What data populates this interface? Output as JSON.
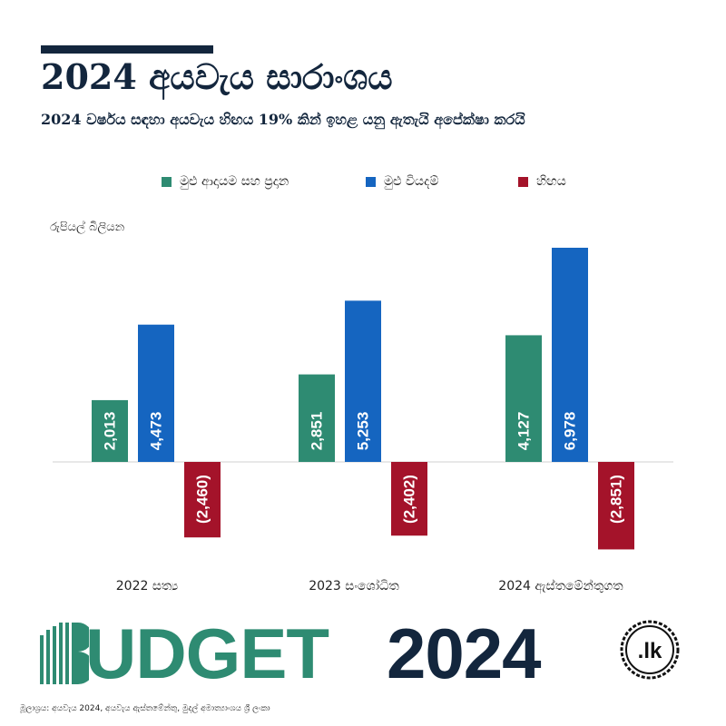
{
  "header": {
    "title": "2024 අයවැය සාරාංශය",
    "subtitle": "2024 වර්ෂය සඳහා අයවැය හිඟය 19% කින් ඉහළ යනු ඇතැයි අපේක්ෂා කරයි"
  },
  "legend": [
    {
      "label": "මුළු ආදායම සහ ප්‍රදාන",
      "color": "#2e8b72"
    },
    {
      "label": "මුළු වියදම්",
      "color": "#1565c0"
    },
    {
      "label": "හිඟය",
      "color": "#a4132a"
    }
  ],
  "chart_data": {
    "type": "bar",
    "ylabel": "රුපියල් බිලියන",
    "categories": [
      "2022 සත්‍ය",
      "2023 සංශෝධිත",
      "2024 ඇස්තමේන්තුගත"
    ],
    "series": [
      {
        "name": "මුළු ආදායම සහ ප්‍රදාන",
        "values": [
          2013,
          2851,
          4127
        ],
        "labels": [
          "2,013",
          "2,851",
          "4,127"
        ],
        "color": "#2e8b72"
      },
      {
        "name": "මුළු වියදම්",
        "values": [
          4473,
          5253,
          6978
        ],
        "labels": [
          "4,473",
          "5,253",
          "6,978"
        ],
        "color": "#1565c0"
      },
      {
        "name": "හිඟය",
        "values": [
          -2460,
          -2402,
          -2851
        ],
        "labels": [
          "(2,460)",
          "(2,402)",
          "(2,851)"
        ],
        "color": "#a4132a"
      }
    ],
    "ylim": [
      -3000,
      7000
    ],
    "grid": false
  },
  "footer": {
    "brand_left": "UDGET",
    "brand_right": "2024",
    "logo_text": ".lk",
    "source": "මූලාශ්‍රය: අයවැය 2024, අයවැය ඇස්තමේන්තු, මුදල් අමාත්‍යාංශය ශ්‍රී ලංකා"
  }
}
